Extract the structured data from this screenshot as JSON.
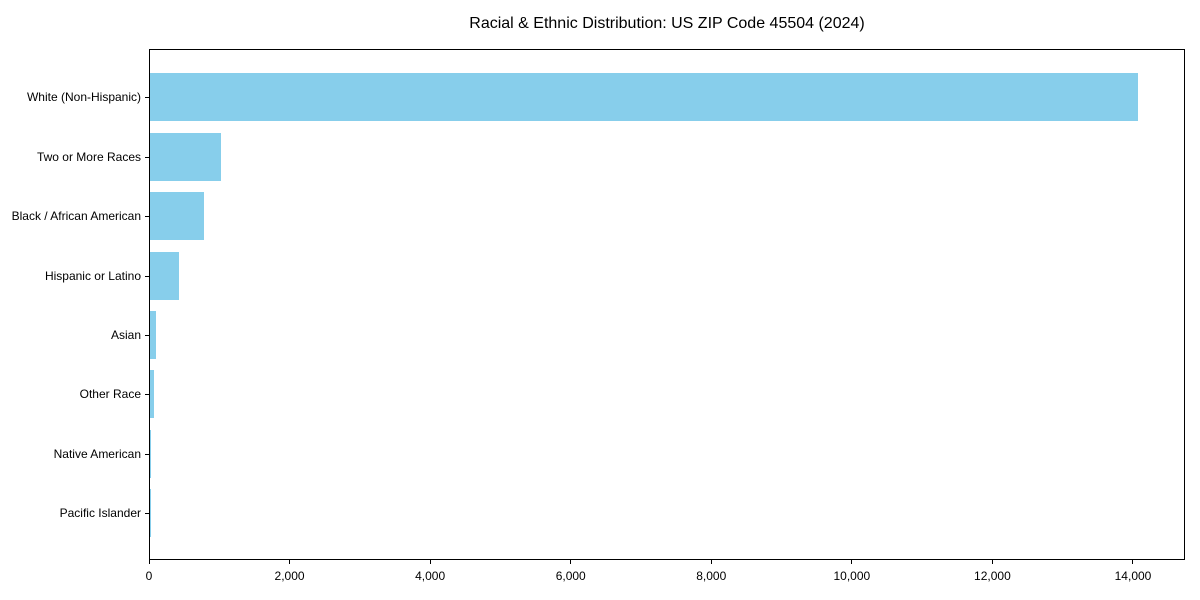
{
  "chart_data": {
    "type": "bar",
    "orientation": "horizontal",
    "title": "Racial & Ethnic Distribution: US ZIP Code 45504 (2024)",
    "categories": [
      "White (Non-Hispanic)",
      "Two or More Races",
      "Black / African American",
      "Hispanic or Latino",
      "Asian",
      "Other Race",
      "Native American",
      "Pacific Islander"
    ],
    "values": [
      14050,
      1010,
      770,
      410,
      82,
      52,
      6,
      3
    ],
    "xlabel": "",
    "ylabel": "",
    "xlim": [
      0,
      14740
    ],
    "xticks": [
      0,
      2000,
      4000,
      6000,
      8000,
      10000,
      12000,
      14000
    ],
    "xtick_labels": [
      "0",
      "2,000",
      "4,000",
      "6,000",
      "8,000",
      "10,000",
      "12,000",
      "14,000"
    ],
    "bar_color": "#87CEEB",
    "axis_color": "#000000",
    "background_color": "#ffffff",
    "grid": false,
    "legend": null
  }
}
